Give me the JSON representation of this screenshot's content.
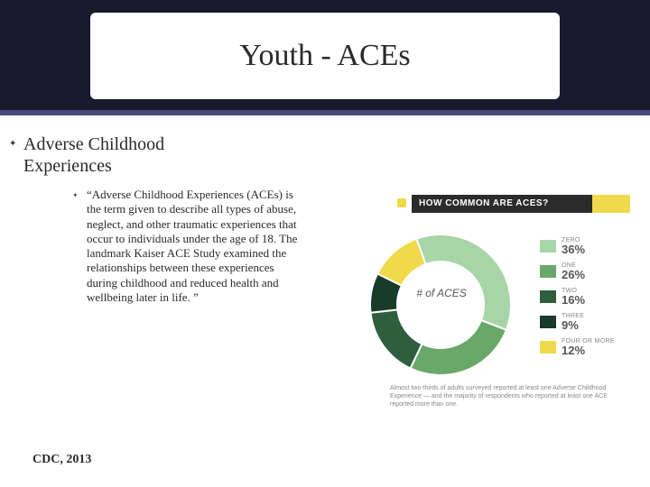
{
  "title": "Youth - ACEs",
  "heading_line1": "Adverse Childhood",
  "heading_line2": "Experiences",
  "body": "“Adverse Childhood Experiences (ACEs) is the term given to describe all types of abuse, neglect, and other traumatic experiences that occur to individuals under the age of 18. The landmark Kaiser ACE Study examined the relationships between these experiences during childhood and reduced health and wellbeing later in life. ”",
  "citation": "CDC, 2013",
  "graphic": {
    "header": "HOW COMMON ARE ACES?",
    "donut_center": "# of ACES",
    "type": "donut",
    "background_color": "#ffffff",
    "donut_outer_r": 78,
    "donut_inner_r": 48,
    "segments": [
      {
        "label": "ZERO",
        "value": 36,
        "display": "36%",
        "color": "#a8d5a8"
      },
      {
        "label": "ONE",
        "value": 26,
        "display": "26%",
        "color": "#6aa86a"
      },
      {
        "label": "TWO",
        "value": 16,
        "display": "16%",
        "color": "#2e5e3e"
      },
      {
        "label": "THREE",
        "value": 9,
        "display": "9%",
        "color": "#1a3a2a"
      },
      {
        "label": "FOUR OR MORE",
        "value": 12,
        "display": "12%",
        "color": "#f0d94a"
      }
    ],
    "caption": "Almost two-thirds of adults surveyed reported at least one Adverse Childhood Experience — and the majority of respondents who reported at least one ACE reported more than one."
  }
}
